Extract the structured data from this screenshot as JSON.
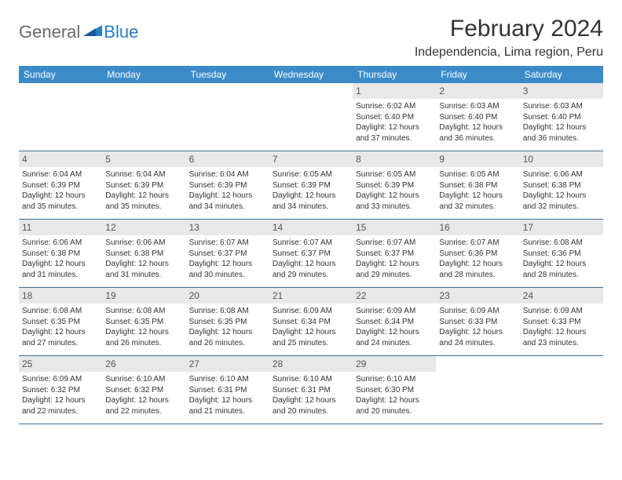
{
  "brand": {
    "part1": "General",
    "part2": "Blue"
  },
  "title": "February 2024",
  "location": "Independencia, Lima region, Peru",
  "colors": {
    "header_bg": "#3b8bc8",
    "header_fg": "#ffffff",
    "daynum_bg": "#e8e8e8",
    "week_border": "#3b6f9c",
    "text": "#333333",
    "logo_gray": "#6a6a6a",
    "logo_blue": "#2b7bbf"
  },
  "days_of_week": [
    "Sunday",
    "Monday",
    "Tuesday",
    "Wednesday",
    "Thursday",
    "Friday",
    "Saturday"
  ],
  "weeks": [
    [
      null,
      null,
      null,
      null,
      {
        "n": "1",
        "sr": "6:02 AM",
        "ss": "6:40 PM",
        "dl": "12 hours and 37 minutes."
      },
      {
        "n": "2",
        "sr": "6:03 AM",
        "ss": "6:40 PM",
        "dl": "12 hours and 36 minutes."
      },
      {
        "n": "3",
        "sr": "6:03 AM",
        "ss": "6:40 PM",
        "dl": "12 hours and 36 minutes."
      }
    ],
    [
      {
        "n": "4",
        "sr": "6:04 AM",
        "ss": "6:39 PM",
        "dl": "12 hours and 35 minutes."
      },
      {
        "n": "5",
        "sr": "6:04 AM",
        "ss": "6:39 PM",
        "dl": "12 hours and 35 minutes."
      },
      {
        "n": "6",
        "sr": "6:04 AM",
        "ss": "6:39 PM",
        "dl": "12 hours and 34 minutes."
      },
      {
        "n": "7",
        "sr": "6:05 AM",
        "ss": "6:39 PM",
        "dl": "12 hours and 34 minutes."
      },
      {
        "n": "8",
        "sr": "6:05 AM",
        "ss": "6:39 PM",
        "dl": "12 hours and 33 minutes."
      },
      {
        "n": "9",
        "sr": "6:05 AM",
        "ss": "6:38 PM",
        "dl": "12 hours and 32 minutes."
      },
      {
        "n": "10",
        "sr": "6:06 AM",
        "ss": "6:38 PM",
        "dl": "12 hours and 32 minutes."
      }
    ],
    [
      {
        "n": "11",
        "sr": "6:06 AM",
        "ss": "6:38 PM",
        "dl": "12 hours and 31 minutes."
      },
      {
        "n": "12",
        "sr": "6:06 AM",
        "ss": "6:38 PM",
        "dl": "12 hours and 31 minutes."
      },
      {
        "n": "13",
        "sr": "6:07 AM",
        "ss": "6:37 PM",
        "dl": "12 hours and 30 minutes."
      },
      {
        "n": "14",
        "sr": "6:07 AM",
        "ss": "6:37 PM",
        "dl": "12 hours and 29 minutes."
      },
      {
        "n": "15",
        "sr": "6:07 AM",
        "ss": "6:37 PM",
        "dl": "12 hours and 29 minutes."
      },
      {
        "n": "16",
        "sr": "6:07 AM",
        "ss": "6:36 PM",
        "dl": "12 hours and 28 minutes."
      },
      {
        "n": "17",
        "sr": "6:08 AM",
        "ss": "6:36 PM",
        "dl": "12 hours and 28 minutes."
      }
    ],
    [
      {
        "n": "18",
        "sr": "6:08 AM",
        "ss": "6:35 PM",
        "dl": "12 hours and 27 minutes."
      },
      {
        "n": "19",
        "sr": "6:08 AM",
        "ss": "6:35 PM",
        "dl": "12 hours and 26 minutes."
      },
      {
        "n": "20",
        "sr": "6:08 AM",
        "ss": "6:35 PM",
        "dl": "12 hours and 26 minutes."
      },
      {
        "n": "21",
        "sr": "6:09 AM",
        "ss": "6:34 PM",
        "dl": "12 hours and 25 minutes."
      },
      {
        "n": "22",
        "sr": "6:09 AM",
        "ss": "6:34 PM",
        "dl": "12 hours and 24 minutes."
      },
      {
        "n": "23",
        "sr": "6:09 AM",
        "ss": "6:33 PM",
        "dl": "12 hours and 24 minutes."
      },
      {
        "n": "24",
        "sr": "6:09 AM",
        "ss": "6:33 PM",
        "dl": "12 hours and 23 minutes."
      }
    ],
    [
      {
        "n": "25",
        "sr": "6:09 AM",
        "ss": "6:32 PM",
        "dl": "12 hours and 22 minutes."
      },
      {
        "n": "26",
        "sr": "6:10 AM",
        "ss": "6:32 PM",
        "dl": "12 hours and 22 minutes."
      },
      {
        "n": "27",
        "sr": "6:10 AM",
        "ss": "6:31 PM",
        "dl": "12 hours and 21 minutes."
      },
      {
        "n": "28",
        "sr": "6:10 AM",
        "ss": "6:31 PM",
        "dl": "12 hours and 20 minutes."
      },
      {
        "n": "29",
        "sr": "6:10 AM",
        "ss": "6:30 PM",
        "dl": "12 hours and 20 minutes."
      },
      null,
      null
    ]
  ],
  "labels": {
    "sunrise": "Sunrise:",
    "sunset": "Sunset:",
    "daylight": "Daylight:"
  }
}
